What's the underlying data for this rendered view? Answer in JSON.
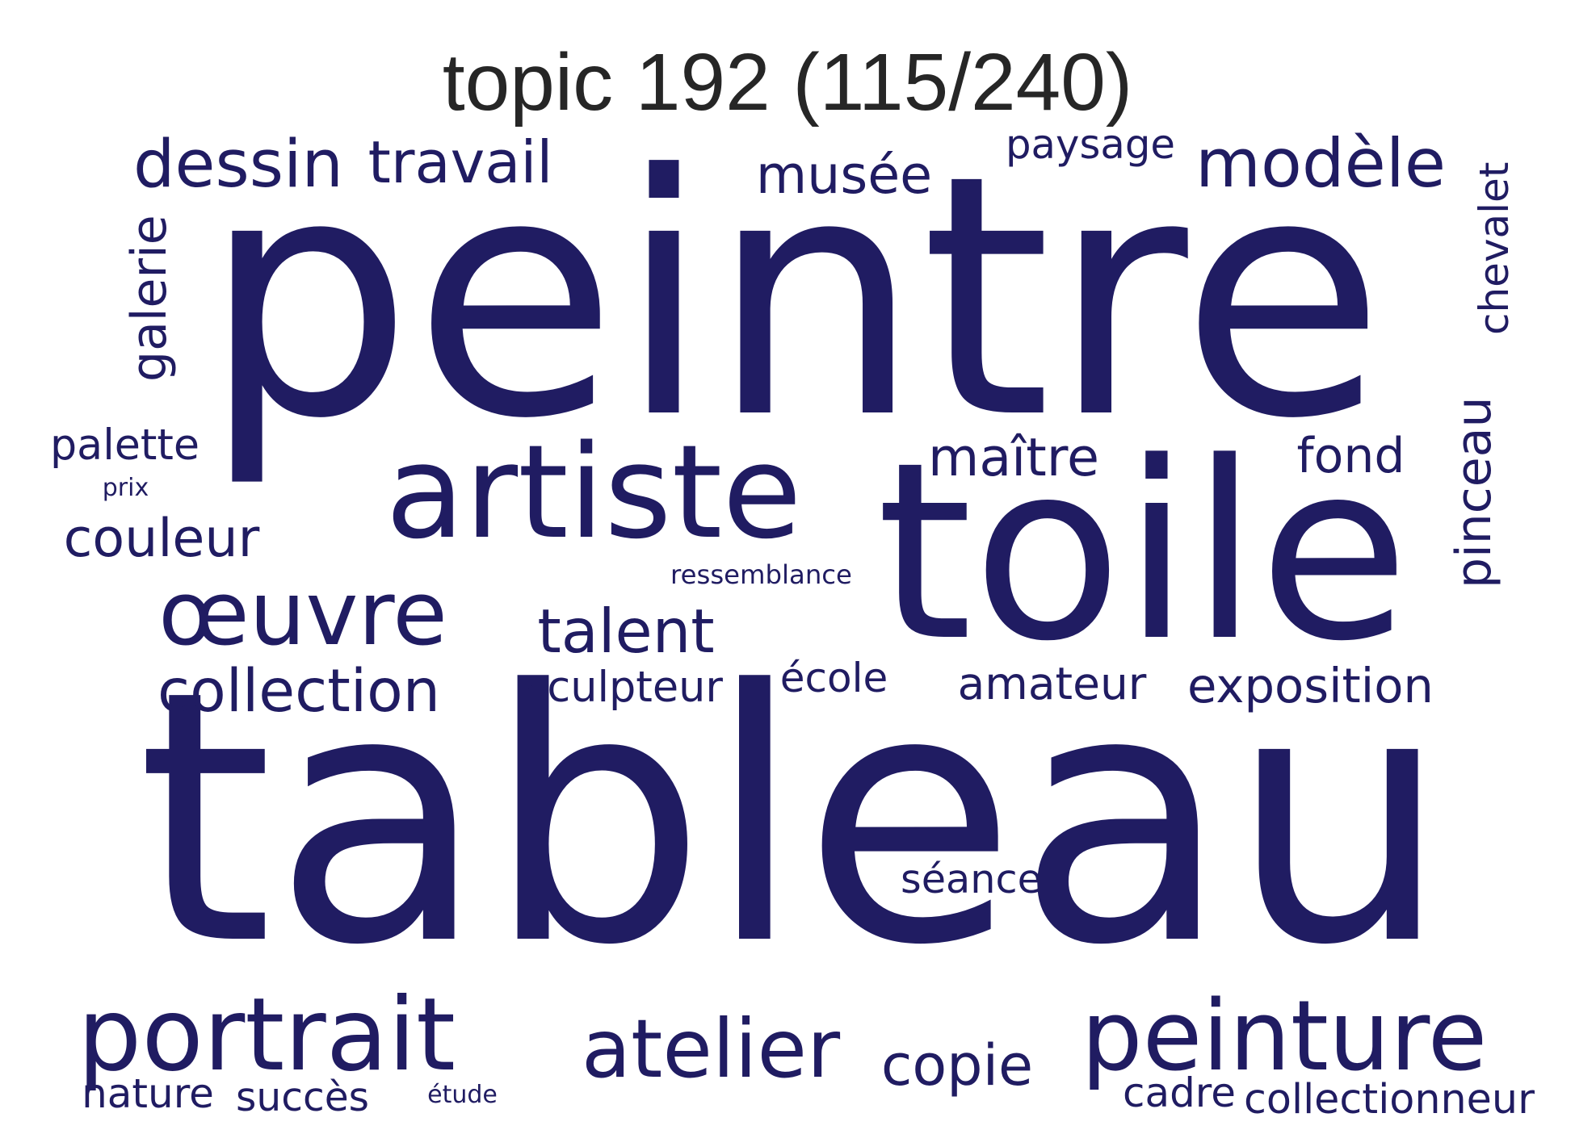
{
  "title": "topic 192 (115/240)",
  "word_color": "#201c62",
  "words": [
    {
      "text": "tableau",
      "weight": 1.0
    },
    {
      "text": "peintre",
      "weight": 0.82
    },
    {
      "text": "toile",
      "weight": 0.58
    },
    {
      "text": "artiste",
      "weight": 0.4
    },
    {
      "text": "peinture",
      "weight": 0.3
    },
    {
      "text": "œuvre",
      "weight": 0.3
    },
    {
      "text": "portrait",
      "weight": 0.3
    },
    {
      "text": "atelier",
      "weight": 0.28
    },
    {
      "text": "dessin",
      "weight": 0.15
    },
    {
      "text": "modèle",
      "weight": 0.15
    },
    {
      "text": "pinceau",
      "weight": 0.13
    },
    {
      "text": "travail",
      "weight": 0.13
    },
    {
      "text": "musée",
      "weight": 0.12
    },
    {
      "text": "collection",
      "weight": 0.12
    },
    {
      "text": "talent",
      "weight": 0.12
    },
    {
      "text": "maître",
      "weight": 0.12
    },
    {
      "text": "galerie",
      "weight": 0.12
    },
    {
      "text": "couleur",
      "weight": 0.11
    },
    {
      "text": "copie",
      "weight": 0.11
    },
    {
      "text": "chevalet",
      "weight": 0.1
    },
    {
      "text": "fond",
      "weight": 0.1
    },
    {
      "text": "exposition",
      "weight": 0.1
    },
    {
      "text": "amateur",
      "weight": 0.1
    },
    {
      "text": "sculpteur",
      "weight": 0.09
    },
    {
      "text": "collectionneur",
      "weight": 0.08
    },
    {
      "text": "palette",
      "weight": 0.08
    },
    {
      "text": "séance",
      "weight": 0.08
    },
    {
      "text": "école",
      "weight": 0.08
    },
    {
      "text": "nature",
      "weight": 0.08
    },
    {
      "text": "succès",
      "weight": 0.08
    },
    {
      "text": "cadre",
      "weight": 0.08
    },
    {
      "text": "paysage",
      "weight": 0.07
    },
    {
      "text": "ressemblance",
      "weight": 0.05
    },
    {
      "text": "prix",
      "weight": 0.04
    },
    {
      "text": "étude",
      "weight": 0.04
    }
  ]
}
